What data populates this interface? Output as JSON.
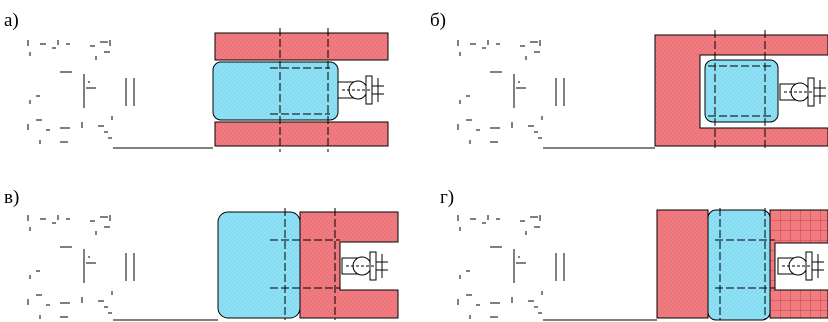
{
  "panels": [
    {
      "label": "а)"
    },
    {
      "label": "б)"
    },
    {
      "label": "в)"
    },
    {
      "label": "г)"
    }
  ]
}
